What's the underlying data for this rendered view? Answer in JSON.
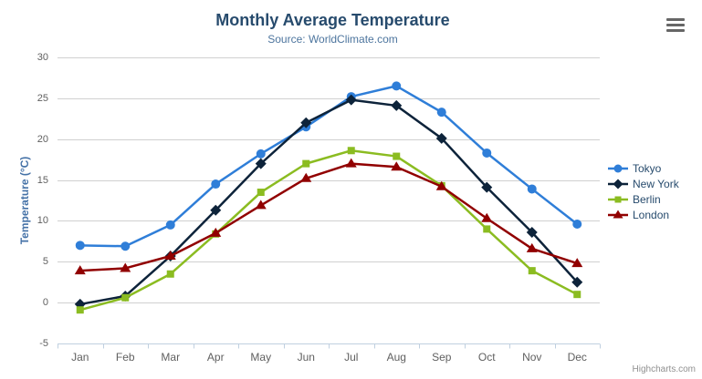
{
  "chart": {
    "title": "Monthly Average Temperature",
    "subtitle": "Source: WorldClimate.com",
    "credits": "Highcharts.com"
  },
  "theme": {
    "background": "#ffffff",
    "title_color": "#274b6d",
    "subtitle_color": "#4d759e",
    "axis_title_color": "#4572a7",
    "axis_label_color": "#606060",
    "grid_color": "#d0d0d0",
    "axis_line_color": "#c0d0e0",
    "legend_text_color": "#274b6d",
    "credits_color": "#909090",
    "menu_icon_color": "#666666"
  },
  "chart_data": {
    "type": "line",
    "title": "Monthly Average Temperature",
    "subtitle": "Source: WorldClimate.com",
    "xlabel": "",
    "ylabel": "Temperature (°C)",
    "ylim": [
      -5,
      30
    ],
    "ytick_interval": 5,
    "yticks": [
      30,
      25,
      20,
      15,
      10,
      5,
      0,
      -5
    ],
    "grid": true,
    "legend_position": "right",
    "categories": [
      "Jan",
      "Feb",
      "Mar",
      "Apr",
      "May",
      "Jun",
      "Jul",
      "Aug",
      "Sep",
      "Oct",
      "Nov",
      "Dec"
    ],
    "series": [
      {
        "name": "Tokyo",
        "color": "#2f7ed8",
        "marker": "circle",
        "values": [
          7.0,
          6.9,
          9.5,
          14.5,
          18.2,
          21.5,
          25.2,
          26.5,
          23.3,
          18.3,
          13.9,
          9.6
        ]
      },
      {
        "name": "New York",
        "color": "#0d233a",
        "marker": "diamond",
        "values": [
          -0.2,
          0.8,
          5.7,
          11.3,
          17.0,
          22.0,
          24.8,
          24.1,
          20.1,
          14.1,
          8.6,
          2.5
        ]
      },
      {
        "name": "Berlin",
        "color": "#8bbc21",
        "marker": "square",
        "values": [
          -0.9,
          0.6,
          3.5,
          8.4,
          13.5,
          17.0,
          18.6,
          17.9,
          14.3,
          9.0,
          3.9,
          1.0
        ]
      },
      {
        "name": "London",
        "color": "#910000",
        "marker": "triangle",
        "values": [
          3.9,
          4.2,
          5.7,
          8.5,
          11.9,
          15.2,
          17.0,
          16.6,
          14.2,
          10.3,
          6.6,
          4.8
        ]
      }
    ]
  }
}
